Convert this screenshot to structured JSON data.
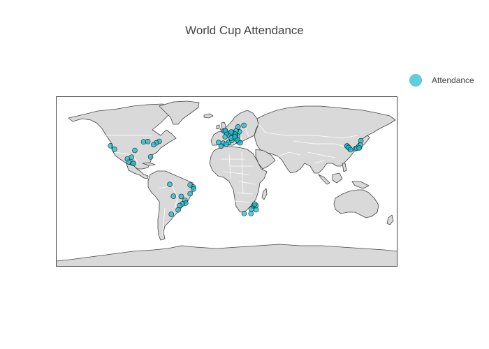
{
  "chart_data": {
    "type": "scatter",
    "kind": "scattergeo",
    "title": "World Cup Attendance",
    "projection": "equirectangular",
    "lon_range": [
      -180,
      180
    ],
    "lat_range": [
      -90,
      90
    ],
    "land_color": "#d9d9d9",
    "border_color": "#ffffff",
    "coastline_color": "#444444",
    "legend": {
      "position": "top-right",
      "entries": [
        "Attendance"
      ]
    },
    "series": [
      {
        "name": "Attendance",
        "color": "#17becf",
        "points": [
          {
            "lon": -118.2,
            "lat": 34.1
          },
          {
            "lon": -122.4,
            "lat": 37.8
          },
          {
            "lon": -71.1,
            "lat": 42.4
          },
          {
            "lon": -74.1,
            "lat": 40.8
          },
          {
            "lon": -77.0,
            "lat": 38.9
          },
          {
            "lon": -87.6,
            "lat": 41.9
          },
          {
            "lon": -96.8,
            "lat": 32.8
          },
          {
            "lon": -83.1,
            "lat": 42.3
          },
          {
            "lon": -80.2,
            "lat": 26.0
          },
          {
            "lon": -99.1,
            "lat": 19.4
          },
          {
            "lon": -103.3,
            "lat": 20.7
          },
          {
            "lon": -100.3,
            "lat": 25.7
          },
          {
            "lon": -98.2,
            "lat": 19.0
          },
          {
            "lon": -104.7,
            "lat": 24.0
          },
          {
            "lon": -60.0,
            "lat": -3.1
          },
          {
            "lon": -38.5,
            "lat": -3.7
          },
          {
            "lon": -35.2,
            "lat": -5.8
          },
          {
            "lon": -34.9,
            "lat": -8.0
          },
          {
            "lon": -38.5,
            "lat": -12.9
          },
          {
            "lon": -47.9,
            "lat": -15.8
          },
          {
            "lon": -56.1,
            "lat": -15.6
          },
          {
            "lon": -43.9,
            "lat": -19.9
          },
          {
            "lon": -43.2,
            "lat": -22.9
          },
          {
            "lon": -46.6,
            "lat": -23.5
          },
          {
            "lon": -49.3,
            "lat": -25.4
          },
          {
            "lon": -51.2,
            "lat": -30.0
          },
          {
            "lon": -58.4,
            "lat": -34.6
          },
          {
            "lon": -3.7,
            "lat": 40.4
          },
          {
            "lon": 2.2,
            "lat": 41.4
          },
          {
            "lon": -0.4,
            "lat": 39.5
          },
          {
            "lon": -5.9,
            "lat": 37.4
          },
          {
            "lon": -8.6,
            "lat": 41.2
          },
          {
            "lon": 2.3,
            "lat": 48.9
          },
          {
            "lon": 5.4,
            "lat": 43.3
          },
          {
            "lon": 4.8,
            "lat": 45.8
          },
          {
            "lon": -1.6,
            "lat": 47.2
          },
          {
            "lon": -0.1,
            "lat": 51.5
          },
          {
            "lon": -2.2,
            "lat": 53.5
          },
          {
            "lon": -3.0,
            "lat": 53.4
          },
          {
            "lon": -1.5,
            "lat": 53.8
          },
          {
            "lon": 13.4,
            "lat": 52.5
          },
          {
            "lon": 11.6,
            "lat": 48.1
          },
          {
            "lon": 9.2,
            "lat": 48.8
          },
          {
            "lon": 6.8,
            "lat": 51.2
          },
          {
            "lon": 7.0,
            "lat": 51.5
          },
          {
            "lon": 10.0,
            "lat": 53.6
          },
          {
            "lon": 8.7,
            "lat": 50.1
          },
          {
            "lon": 9.2,
            "lat": 45.5
          },
          {
            "lon": 12.5,
            "lat": 41.9
          },
          {
            "lon": 11.3,
            "lat": 43.8
          },
          {
            "lon": 14.3,
            "lat": 40.9
          },
          {
            "lon": 8.5,
            "lat": 47.4
          },
          {
            "lon": 18.1,
            "lat": 59.3
          },
          {
            "lon": 11.9,
            "lat": 57.7
          },
          {
            "lon": 4.4,
            "lat": 50.8
          },
          {
            "lon": 4.9,
            "lat": 52.4
          },
          {
            "lon": 28.0,
            "lat": -26.2
          },
          {
            "lon": 28.2,
            "lat": -25.7
          },
          {
            "lon": 31.0,
            "lat": -29.9
          },
          {
            "lon": 18.4,
            "lat": -33.9
          },
          {
            "lon": 25.6,
            "lat": -33.9
          },
          {
            "lon": 26.2,
            "lat": -29.1
          },
          {
            "lon": 30.9,
            "lat": -25.5
          },
          {
            "lon": 29.5,
            "lat": -23.9
          },
          {
            "lon": 126.9,
            "lat": 37.6
          },
          {
            "lon": 129.1,
            "lat": 35.2
          },
          {
            "lon": 126.7,
            "lat": 37.5
          },
          {
            "lon": 128.6,
            "lat": 35.9
          },
          {
            "lon": 139.7,
            "lat": 35.7
          },
          {
            "lon": 135.5,
            "lat": 34.7
          },
          {
            "lon": 136.9,
            "lat": 35.2
          },
          {
            "lon": 141.4,
            "lat": 43.1
          },
          {
            "lon": 130.4,
            "lat": 33.6
          },
          {
            "lon": 141.0,
            "lat": 38.3
          },
          {
            "lon": 139.6,
            "lat": 35.4
          }
        ]
      }
    ]
  }
}
